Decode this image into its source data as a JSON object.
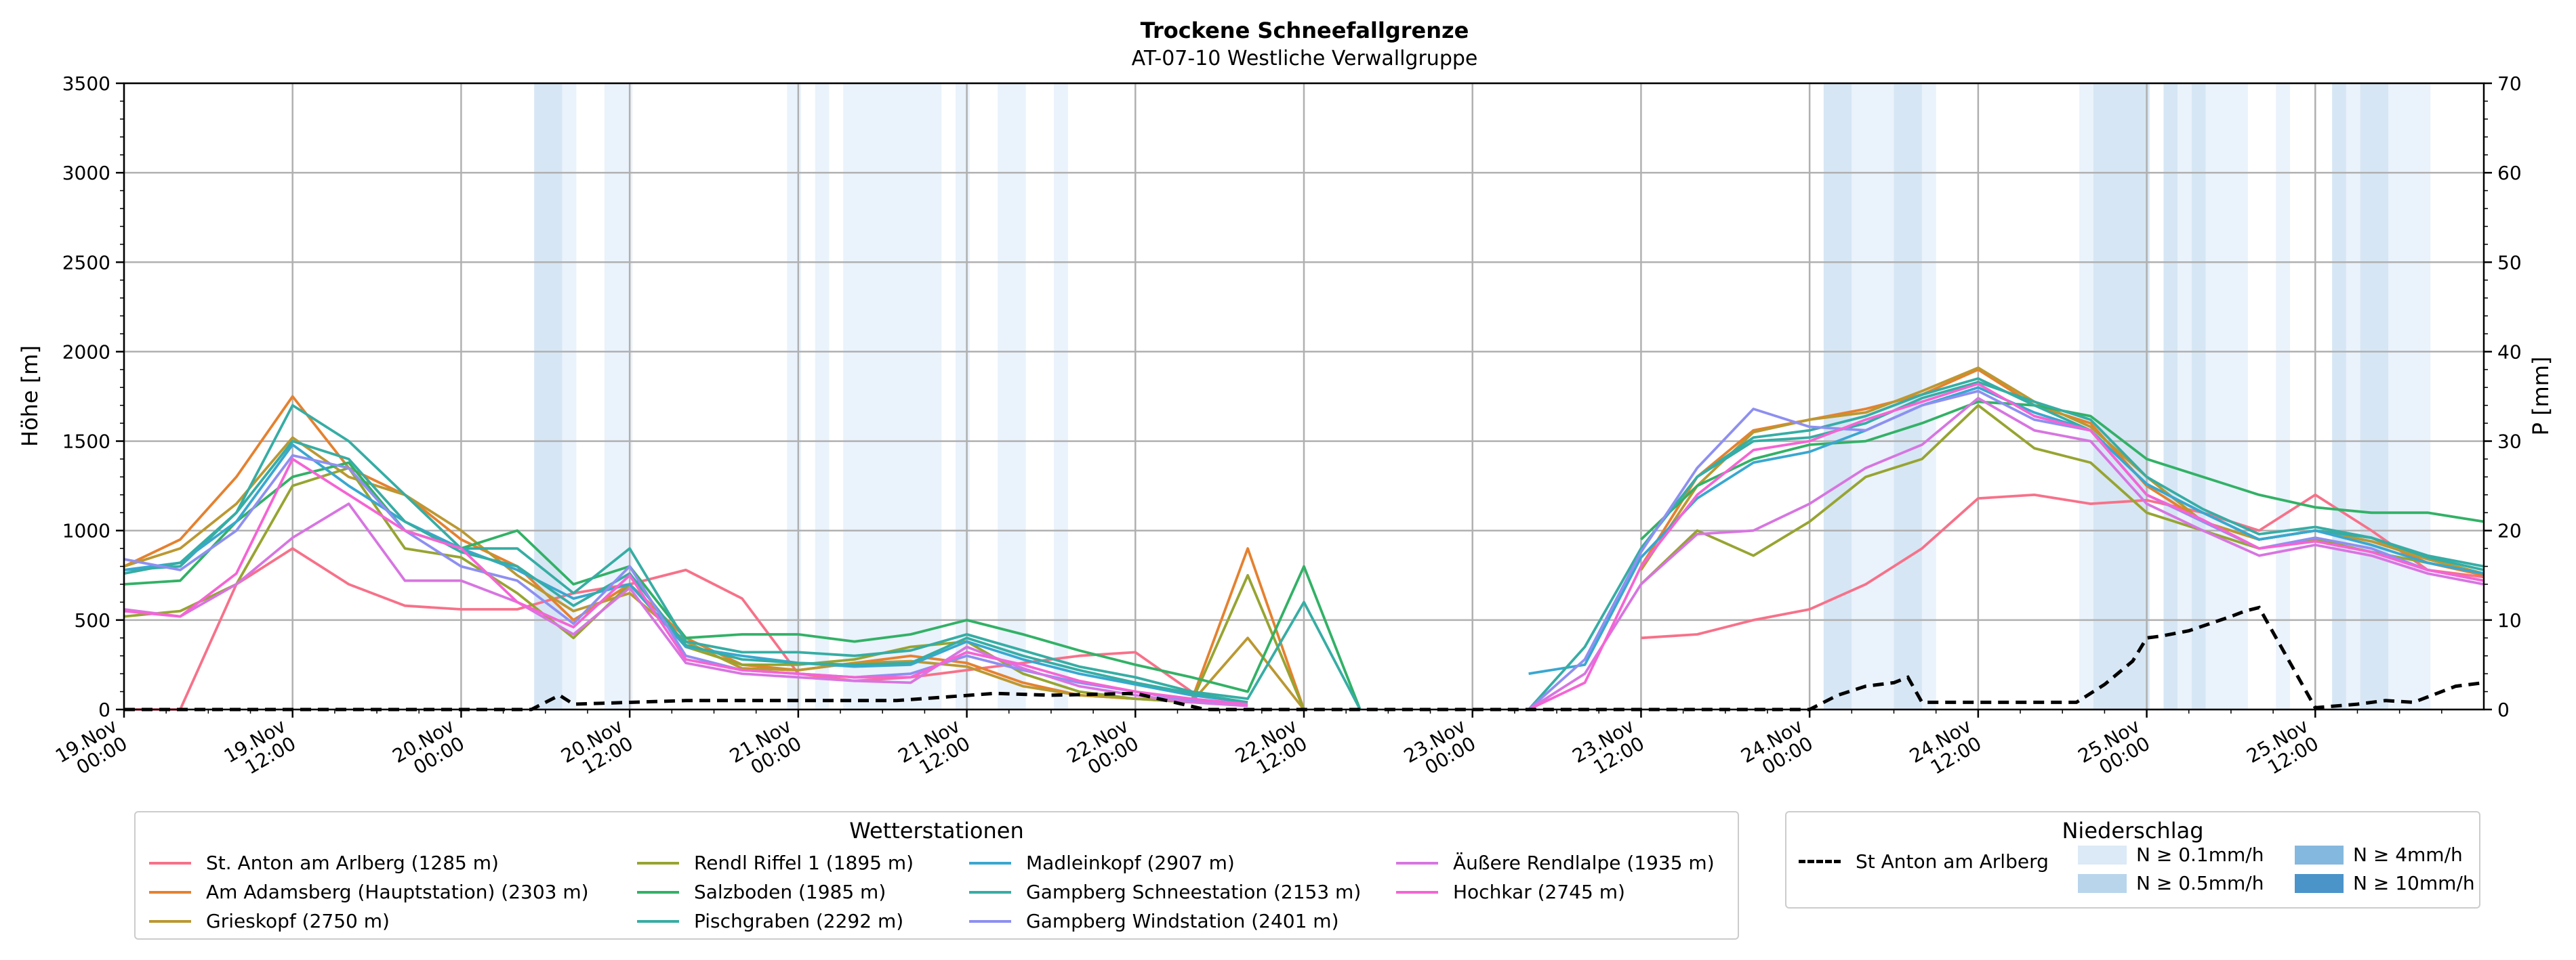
{
  "chart_data": {
    "type": "line",
    "title": "Trockene Schneefallgrenze",
    "subtitle": "AT-07-10 Westliche Verwallgruppe",
    "ylabel": "Höhe [m]",
    "ylabel_right": "P [mm]",
    "ylim": [
      0,
      3500
    ],
    "ylim_right": [
      0,
      70
    ],
    "yticks": [
      0,
      500,
      1000,
      1500,
      2000,
      2500,
      3000,
      3500
    ],
    "yticks_right": [
      0,
      10,
      20,
      30,
      40,
      50,
      60,
      70
    ],
    "x_hours": [
      0,
      4,
      8,
      12,
      16,
      20,
      24,
      28,
      32,
      36,
      40,
      44,
      48,
      52,
      56,
      60,
      64,
      68,
      72,
      76,
      80,
      84,
      88,
      92,
      96,
      100,
      104,
      108,
      112,
      116,
      120,
      124,
      128,
      132,
      136,
      140,
      144,
      148,
      152,
      156,
      160,
      164,
      168
    ],
    "xlim_hours": [
      0,
      168
    ],
    "xticks": [
      {
        "h": 0,
        "line1": "19.Nov",
        "line2": "00:00"
      },
      {
        "h": 12,
        "line1": "19.Nov",
        "line2": "12:00"
      },
      {
        "h": 24,
        "line1": "20.Nov",
        "line2": "00:00"
      },
      {
        "h": 36,
        "line1": "20.Nov",
        "line2": "12:00"
      },
      {
        "h": 48,
        "line1": "21.Nov",
        "line2": "00:00"
      },
      {
        "h": 60,
        "line1": "21.Nov",
        "line2": "12:00"
      },
      {
        "h": 72,
        "line1": "22.Nov",
        "line2": "00:00"
      },
      {
        "h": 84,
        "line1": "22.Nov",
        "line2": "12:00"
      },
      {
        "h": 96,
        "line1": "23.Nov",
        "line2": "00:00"
      },
      {
        "h": 108,
        "line1": "23.Nov",
        "line2": "12:00"
      },
      {
        "h": 120,
        "line1": "24.Nov",
        "line2": "00:00"
      },
      {
        "h": 132,
        "line1": "24.Nov",
        "line2": "12:00"
      },
      {
        "h": 144,
        "line1": "25.Nov",
        "line2": "00:00"
      },
      {
        "h": 156,
        "line1": "25.Nov",
        "line2": "12:00"
      }
    ],
    "grid": true,
    "precip_bands": [
      {
        "from": 29.2,
        "to": 31.2,
        "level": "0.5"
      },
      {
        "from": 31.2,
        "to": 32.2,
        "level": "0.1"
      },
      {
        "from": 34.2,
        "to": 36.2,
        "level": "0.1"
      },
      {
        "from": 47.2,
        "to": 48.2,
        "level": "0.1"
      },
      {
        "from": 49.2,
        "to": 50.2,
        "level": "0.1"
      },
      {
        "from": 51.2,
        "to": 58.2,
        "level": "0.1"
      },
      {
        "from": 59.2,
        "to": 60.2,
        "level": "0.1"
      },
      {
        "from": 62.2,
        "to": 64.2,
        "level": "0.1"
      },
      {
        "from": 66.2,
        "to": 67.2,
        "level": "0.1"
      },
      {
        "from": 121.0,
        "to": 123.0,
        "level": "0.5"
      },
      {
        "from": 123.0,
        "to": 126.0,
        "level": "0.1"
      },
      {
        "from": 126.0,
        "to": 128.0,
        "level": "0.5"
      },
      {
        "from": 128.0,
        "to": 129.0,
        "level": "0.1"
      },
      {
        "from": 139.2,
        "to": 140.2,
        "level": "0.1"
      },
      {
        "from": 140.2,
        "to": 144.2,
        "level": "0.5"
      },
      {
        "from": 145.2,
        "to": 146.2,
        "level": "0.5"
      },
      {
        "from": 146.2,
        "to": 147.2,
        "level": "0.1"
      },
      {
        "from": 147.2,
        "to": 148.2,
        "level": "0.5"
      },
      {
        "from": 148.2,
        "to": 151.2,
        "level": "0.1"
      },
      {
        "from": 153.2,
        "to": 154.2,
        "level": "0.1"
      },
      {
        "from": 157.2,
        "to": 158.2,
        "level": "0.5"
      },
      {
        "from": 158.2,
        "to": 159.2,
        "level": "0.1"
      },
      {
        "from": 159.2,
        "to": 161.2,
        "level": "0.5"
      },
      {
        "from": 161.2,
        "to": 164.2,
        "level": "0.1"
      }
    ],
    "precip_series": {
      "name": "St Anton am Arlberg",
      "x": [
        0,
        29,
        31,
        32,
        40,
        55,
        62,
        66,
        72,
        77,
        80,
        84,
        96,
        112,
        120,
        122,
        124,
        126,
        127,
        128,
        135,
        139,
        141,
        143,
        144,
        145,
        147,
        150,
        151,
        152,
        156,
        159,
        161,
        163,
        166,
        168
      ],
      "values": [
        0,
        0,
        1.6,
        0.6,
        1.0,
        1.0,
        1.8,
        1.6,
        1.8,
        0,
        0,
        0,
        0,
        0,
        0,
        1.6,
        2.6,
        3.0,
        3.6,
        0.8,
        0.8,
        0.8,
        2.8,
        5.4,
        8.0,
        8.2,
        8.8,
        10.4,
        11.0,
        11.4,
        0.2,
        0.6,
        1.0,
        0.8,
        2.6,
        3.0
      ]
    },
    "series": [
      {
        "name": "St. Anton am Arlberg (1285 m)",
        "color": "#f77189",
        "values": [
          0,
          0,
          700,
          900,
          700,
          580,
          560,
          560,
          650,
          700,
          780,
          620,
          200,
          160,
          180,
          220,
          260,
          300,
          320,
          100,
          null,
          null,
          null,
          null,
          null,
          null,
          null,
          400,
          420,
          500,
          560,
          700,
          900,
          1180,
          1200,
          1150,
          1170,
          1100,
          1000,
          1200,
          1000,
          780,
          740
        ]
      },
      {
        "name": "Am Adamsberg (Hauptstation) (2303 m)",
        "color": "#e5812f",
        "values": [
          800,
          950,
          1300,
          1750,
          1350,
          1200,
          950,
          800,
          500,
          700,
          400,
          250,
          220,
          260,
          300,
          260,
          150,
          80,
          60,
          50,
          900,
          0,
          null,
          null,
          null,
          null,
          null,
          800,
          1300,
          1560,
          1620,
          1680,
          1760,
          1900,
          1700,
          1600,
          1250,
          1050,
          950,
          1000,
          960,
          820,
          750
        ]
      },
      {
        "name": "Grieskopf (2750 m)",
        "color": "#bb9832",
        "values": [
          800,
          900,
          1150,
          1520,
          1300,
          1200,
          1000,
          750,
          550,
          650,
          380,
          230,
          220,
          260,
          270,
          240,
          130,
          80,
          60,
          40,
          400,
          0,
          null,
          null,
          null,
          null,
          null,
          780,
          1250,
          1550,
          1620,
          1660,
          1780,
          1910,
          1720,
          1580,
          1300,
          1050,
          950,
          1000,
          940,
          840,
          760
        ]
      },
      {
        "name": "Rendl Riffel 1 (1895 m)",
        "color": "#97a431",
        "values": [
          520,
          550,
          700,
          1250,
          1350,
          900,
          850,
          650,
          400,
          700,
          350,
          250,
          250,
          280,
          350,
          380,
          200,
          100,
          60,
          40,
          750,
          0,
          null,
          null,
          null,
          null,
          null,
          700,
          1000,
          860,
          1050,
          1300,
          1400,
          1700,
          1460,
          1380,
          1100,
          1000,
          900,
          950,
          880,
          820,
          760
        ]
      },
      {
        "name": "Salzboden (1985 m)",
        "color": "#32b166",
        "values": [
          700,
          720,
          1050,
          1300,
          1380,
          1000,
          900,
          1000,
          700,
          800,
          400,
          420,
          420,
          380,
          420,
          500,
          420,
          330,
          250,
          180,
          100,
          800,
          0,
          null,
          null,
          null,
          null,
          950,
          1250,
          1400,
          1480,
          1500,
          1600,
          1720,
          1700,
          1640,
          1400,
          1300,
          1200,
          1130,
          1100,
          1100,
          1050
        ]
      },
      {
        "name": "Pischgraben (2292 m)",
        "color": "#36ada4",
        "values": [
          780,
          800,
          1100,
          1700,
          1500,
          1200,
          900,
          900,
          650,
          900,
          380,
          320,
          320,
          300,
          330,
          420,
          330,
          240,
          180,
          100,
          60,
          600,
          0,
          null,
          null,
          null,
          null,
          900,
          1300,
          1520,
          1560,
          1640,
          1760,
          1850,
          1700,
          1560,
          1260,
          1100,
          950,
          1000,
          960,
          850,
          780
        ]
      },
      {
        "name": "Madleinkopf (2907 m)",
        "color": "#39a7d0",
        "values": [
          780,
          820,
          1050,
          1480,
          1250,
          1050,
          900,
          780,
          620,
          700,
          350,
          300,
          260,
          240,
          250,
          380,
          280,
          200,
          140,
          80,
          40,
          null,
          null,
          null,
          null,
          200,
          250,
          850,
          1180,
          1380,
          1440,
          1560,
          1700,
          1800,
          1660,
          1560,
          1260,
          1100,
          950,
          1000,
          920,
          820,
          760
        ]
      },
      {
        "name": "Gampberg Schneestation (2153 m)",
        "color": "#36ada4",
        "values": [
          760,
          820,
          1100,
          1500,
          1400,
          1050,
          880,
          800,
          580,
          760,
          360,
          280,
          260,
          250,
          260,
          400,
          300,
          220,
          150,
          90,
          40,
          null,
          null,
          null,
          null,
          0,
          350,
          900,
          1300,
          1500,
          1520,
          1600,
          1740,
          1830,
          1720,
          1620,
          1300,
          1120,
          980,
          1020,
          960,
          860,
          800
        ]
      },
      {
        "name": "Gampberg Windstation (2401 m)",
        "color": "#8e8ff1",
        "values": [
          840,
          780,
          1000,
          1420,
          1350,
          1000,
          800,
          720,
          480,
          800,
          300,
          220,
          200,
          180,
          200,
          300,
          220,
          150,
          100,
          50,
          20,
          null,
          null,
          null,
          null,
          0,
          280,
          880,
          1350,
          1680,
          1580,
          1560,
          1700,
          1780,
          1620,
          1560,
          1200,
          1050,
          900,
          960,
          900,
          780,
          720
        ]
      },
      {
        "name": "Äußere Rendlalpe (1935 m)",
        "color": "#d775e1",
        "values": [
          560,
          520,
          700,
          960,
          1150,
          720,
          720,
          600,
          420,
          680,
          260,
          200,
          180,
          160,
          150,
          350,
          230,
          130,
          80,
          40,
          20,
          null,
          null,
          null,
          null,
          0,
          200,
          700,
          980,
          1000,
          1150,
          1350,
          1480,
          1740,
          1560,
          1500,
          1150,
          1000,
          860,
          920,
          860,
          760,
          700
        ]
      },
      {
        "name": "Hochkar (2745 m)",
        "color": "#f564d4",
        "values": [
          550,
          520,
          760,
          1400,
          1200,
          1000,
          900,
          600,
          460,
          750,
          280,
          220,
          200,
          180,
          180,
          320,
          250,
          160,
          100,
          60,
          30,
          null,
          null,
          null,
          null,
          0,
          150,
          800,
          1200,
          1450,
          1500,
          1620,
          1720,
          1820,
          1640,
          1560,
          1200,
          1060,
          900,
          940,
          880,
          780,
          720
        ]
      }
    ]
  },
  "legend_stations": {
    "title": "Wetterstationen",
    "items": [
      {
        "label": "St. Anton am Arlberg (1285 m)",
        "color": "#f77189"
      },
      {
        "label": "Am Adamsberg (Hauptstation) (2303 m)",
        "color": "#e5812f"
      },
      {
        "label": "Grieskopf (2750 m)",
        "color": "#bb9832"
      },
      {
        "label": "Rendl Riffel 1 (1895 m)",
        "color": "#97a431"
      },
      {
        "label": "Salzboden (1985 m)",
        "color": "#32b166"
      },
      {
        "label": "Pischgraben (2292 m)",
        "color": "#36ada4"
      },
      {
        "label": "Madleinkopf (2907 m)",
        "color": "#39a7d0"
      },
      {
        "label": "Gampberg Schneestation (2153 m)",
        "color": "#36ada4"
      },
      {
        "label": "Gampberg Windstation (2401 m)",
        "color": "#8e8ff1"
      },
      {
        "label": "Äußere Rendlalpe (1935 m)",
        "color": "#d775e1"
      },
      {
        "label": "Hochkar (2745 m)",
        "color": "#f564d4"
      }
    ]
  },
  "legend_precip": {
    "title": "Niederschlag",
    "line_label": "St Anton am Arlberg",
    "levels": [
      {
        "label": "N ≥ 0.1mm/h",
        "color": "#dce9f6"
      },
      {
        "label": "N ≥ 0.5mm/h",
        "color": "#b9d5ec"
      },
      {
        "label": "N ≥ 4mm/h",
        "color": "#85b8df"
      },
      {
        "label": "N ≥ 10mm/h",
        "color": "#4a94c9"
      }
    ]
  },
  "colors": {
    "band_01": "#eaf2fb",
    "band_05": "#d6e6f4",
    "grid": "#b0b0b0",
    "precip_line": "#000000"
  }
}
